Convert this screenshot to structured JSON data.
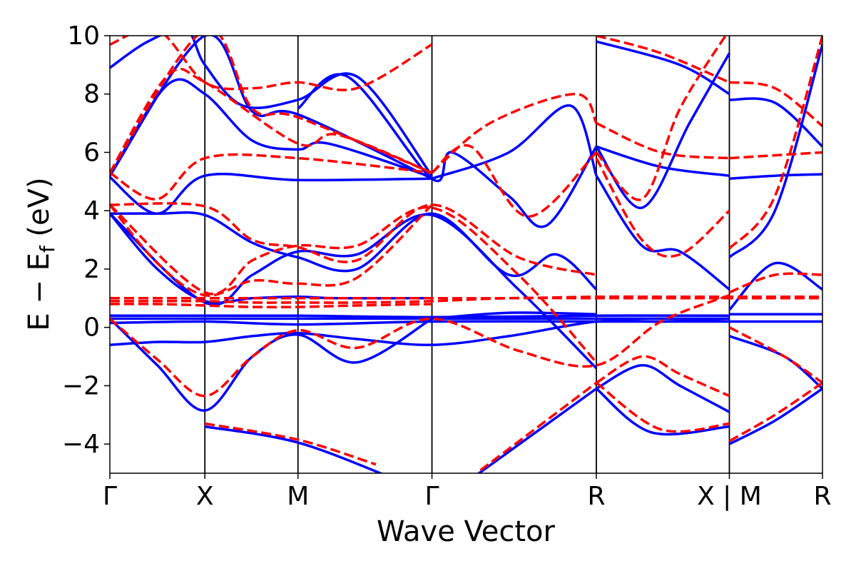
{
  "chart_data": {
    "type": "line",
    "title": "",
    "xlabel": "Wave Vector",
    "ylabel": "E − E",
    "ylabel_subscript": "f",
    "ylabel_units": " (eV)",
    "ylim": [
      -5,
      10
    ],
    "xlim": [
      0,
      7.5
    ],
    "yticks": [
      -4,
      -2,
      0,
      2,
      4,
      6,
      8,
      10
    ],
    "ytick_labels": [
      "−4",
      "−2",
      "0",
      "2",
      "4",
      "6",
      "8",
      "10"
    ],
    "kpoints": [
      {
        "label": "Γ",
        "x": 0.0
      },
      {
        "label": "X",
        "x": 1.0
      },
      {
        "label": "M",
        "x": 1.98
      },
      {
        "label": "Γ",
        "x": 3.39
      },
      {
        "label": "R",
        "x": 5.12
      },
      {
        "label": "X | M",
        "x": 6.52
      },
      {
        "label": "R",
        "x": 7.5
      }
    ],
    "grid": false,
    "colors": {
      "series_a": "#0000ff",
      "series_b": "#ff0000",
      "axis": "#000000"
    },
    "series": [
      {
        "style": "solid",
        "color": "#0000ff",
        "bands": [
          {
            "x": [
              0,
              0.5,
              1.0,
              1.5,
              1.98,
              2.6,
              3.39,
              4.2,
              5.12,
              5.8,
              6.52
            ],
            "y": [
              -0.6,
              -0.5,
              -0.5,
              -0.3,
              -0.2,
              -0.4,
              -0.6,
              -0.3,
              0.2,
              0.2,
              0.3
            ]
          },
          {
            "x": [
              0,
              1.0,
              1.98,
              3.39,
              5.12,
              6.52
            ],
            "y": [
              0.15,
              0.2,
              0.1,
              0.2,
              0.2,
              0.2
            ]
          },
          {
            "x": [
              0,
              1.0,
              1.98,
              3.39,
              5.12,
              6.52
            ],
            "y": [
              0.3,
              0.3,
              0.3,
              0.3,
              0.3,
              0.3
            ]
          },
          {
            "x": [
              0,
              1.0,
              1.98,
              3.39,
              5.12,
              6.52
            ],
            "y": [
              0.4,
              0.4,
              0.4,
              0.35,
              0.4,
              0.4
            ]
          },
          {
            "x": [
              0,
              0.5,
              1.0,
              1.5,
              1.98,
              2.6,
              3.39
            ],
            "y": [
              0.3,
              -1.3,
              -2.85,
              -1.0,
              -0.25,
              -1.2,
              0.3
            ]
          },
          {
            "x": [
              0,
              0.5,
              1.0,
              1.5,
              1.98,
              2.4,
              3.39
            ],
            "y": [
              3.9,
              2.0,
              0.9,
              1.0,
              1.05,
              1.0,
              1.0
            ]
          },
          {
            "x": [
              0,
              0.5,
              1.0,
              1.5,
              1.98,
              2.6,
              3.39,
              4.2,
              4.7,
              5.12
            ],
            "y": [
              3.9,
              3.9,
              3.85,
              2.9,
              2.4,
              2.0,
              3.9,
              1.8,
              2.5,
              1.3
            ]
          },
          {
            "x": [
              0,
              1.0,
              1.5,
              1.98,
              2.6,
              3.39,
              4.3,
              5.12
            ],
            "y": [
              3.9,
              0.85,
              1.8,
              2.6,
              2.5,
              3.85,
              1.3,
              -1.4
            ]
          },
          {
            "x": [
              0,
              0.5,
              1.0,
              1.98,
              3.39
            ],
            "y": [
              5.15,
              3.9,
              5.2,
              5.05,
              5.1
            ]
          },
          {
            "x": [
              0,
              0.6,
              1.0,
              1.5,
              1.98,
              2.3,
              3.39
            ],
            "y": [
              5.2,
              8.3,
              8.0,
              6.4,
              6.1,
              6.3,
              5.15
            ]
          },
          {
            "x": [
              0,
              0.4,
              0.8,
              1.0,
              1.4,
              1.98,
              2.6,
              3.39
            ],
            "y": [
              8.9,
              9.8,
              10.2,
              9.0,
              7.6,
              7.8,
              8.6,
              5.2
            ]
          },
          {
            "x": [
              0,
              1.0,
              1.5,
              1.98,
              3.39
            ],
            "y": [
              5.2,
              10.0,
              7.4,
              7.3,
              5.1
            ]
          },
          {
            "x": [
              1.98,
              2.5,
              3.39,
              3.6,
              4.2,
              4.6,
              5.12
            ],
            "y": [
              7.5,
              8.6,
              5.1,
              6.0,
              4.5,
              3.5,
              6.2
            ]
          },
          {
            "x": [
              3.39,
              4.2,
              4.85,
              5.12
            ],
            "y": [
              5.1,
              6.0,
              7.6,
              5.2
            ]
          },
          {
            "x": [
              3.39,
              4.2,
              5.12
            ],
            "y": [
              0.3,
              0.5,
              0.45
            ]
          },
          {
            "x": [
              5.12,
              5.6,
              6.0,
              6.52
            ],
            "y": [
              5.2,
              2.8,
              2.6,
              1.3
            ]
          },
          {
            "x": [
              5.12,
              5.6,
              6.1,
              6.52
            ],
            "y": [
              6.2,
              4.1,
              7.0,
              9.4
            ]
          },
          {
            "x": [
              5.12,
              5.8,
              6.52
            ],
            "y": [
              6.2,
              5.5,
              5.2
            ]
          },
          {
            "x": [
              5.12,
              6.0,
              6.52
            ],
            "y": [
              9.8,
              9.0,
              8.0
            ]
          },
          {
            "x": [
              5.12,
              5.6,
              6.0,
              6.52
            ],
            "y": [
              -2.1,
              -1.3,
              -2.0,
              -2.9
            ]
          },
          {
            "x": [
              5.12,
              5.7,
              6.52
            ],
            "y": [
              -2.1,
              -3.6,
              -3.4
            ]
          },
          {
            "x": [
              1.0,
              1.98,
              3.0
            ],
            "y": [
              -3.4,
              -3.95,
              -5.2
            ]
          },
          {
            "x": [
              3.8,
              5.12
            ],
            "y": [
              -5.2,
              -2.1
            ]
          },
          {
            "x": [
              6.52,
              7.0,
              7.5
            ],
            "y": [
              -4.0,
              -3.2,
              -2.1
            ]
          },
          {
            "x": [
              6.52,
              7.0,
              7.5
            ],
            "y": [
              7.8,
              7.7,
              6.2
            ]
          },
          {
            "x": [
              6.52,
              7.0,
              7.5
            ],
            "y": [
              5.1,
              5.2,
              5.25
            ]
          },
          {
            "x": [
              6.52,
              7.0,
              7.5
            ],
            "y": [
              2.4,
              4.0,
              9.7
            ]
          },
          {
            "x": [
              6.52,
              7.0,
              7.5
            ],
            "y": [
              0.45,
              0.45,
              0.45
            ]
          },
          {
            "x": [
              6.52,
              7.0,
              7.5
            ],
            "y": [
              0.2,
              0.2,
              0.2
            ]
          },
          {
            "x": [
              6.52,
              7.1,
              7.5
            ],
            "y": [
              -0.3,
              -1.0,
              -2.1
            ]
          },
          {
            "x": [
              6.52,
              7.0,
              7.5
            ],
            "y": [
              0.6,
              2.2,
              1.3
            ]
          }
        ]
      },
      {
        "style": "dashed",
        "color": "#ff0000",
        "bands": [
          {
            "x": [
              0,
              0.5,
              1.0,
              1.5,
              1.98,
              2.6,
              3.39,
              4.2,
              5.12,
              5.8,
              6.52,
              7.0,
              7.5
            ],
            "y": [
              1.0,
              1.0,
              1.0,
              1.0,
              1.0,
              1.0,
              1.0,
              1.0,
              1.05,
              1.05,
              1.05,
              1.05,
              1.05
            ]
          },
          {
            "x": [
              0,
              0.5,
              1.0,
              1.5,
              1.98,
              2.6,
              3.39,
              4.2,
              5.12,
              5.8,
              6.52,
              7.0,
              7.5
            ],
            "y": [
              0.9,
              0.9,
              0.9,
              0.85,
              0.85,
              0.85,
              0.9,
              1.0,
              1.0,
              1.0,
              1.0,
              1.0,
              1.0
            ]
          },
          {
            "x": [
              0,
              0.5,
              1.0,
              1.5,
              1.98,
              2.6,
              3.39
            ],
            "y": [
              0.8,
              0.8,
              0.75,
              0.7,
              0.7,
              0.75,
              0.8
            ]
          },
          {
            "x": [
              0,
              0.5,
              1.0,
              1.5,
              1.98,
              2.6,
              3.39,
              4.3,
              5.12,
              5.8,
              6.52
            ],
            "y": [
              0.3,
              -1.1,
              -2.35,
              -1.0,
              -0.1,
              -0.7,
              0.3,
              -0.8,
              -1.3,
              0.2,
              1.1
            ]
          },
          {
            "x": [
              0,
              0.5,
              1.0,
              1.5,
              1.98,
              2.6,
              3.39
            ],
            "y": [
              4.2,
              2.2,
              1.1,
              1.6,
              1.5,
              1.7,
              4.2
            ]
          },
          {
            "x": [
              0,
              1.0,
              1.5,
              1.98,
              2.6,
              3.39,
              4.3,
              5.12
            ],
            "y": [
              4.2,
              4.15,
              3.0,
              2.75,
              2.3,
              4.2,
              2.4,
              1.8
            ]
          },
          {
            "x": [
              0,
              1.0,
              1.5,
              1.98,
              2.6,
              3.39,
              4.3,
              5.12
            ],
            "y": [
              4.2,
              1.2,
              2.3,
              2.8,
              2.8,
              4.1,
              1.8,
              -1.2
            ]
          },
          {
            "x": [
              0,
              0.5,
              1.0,
              1.98,
              3.39
            ],
            "y": [
              5.3,
              4.4,
              5.8,
              5.8,
              5.3
            ]
          },
          {
            "x": [
              0,
              0.6,
              1.0,
              1.98,
              2.4,
              3.39
            ],
            "y": [
              5.3,
              8.6,
              8.4,
              6.3,
              6.6,
              5.3
            ]
          },
          {
            "x": [
              0,
              0.5,
              1.0,
              1.5,
              1.98,
              2.6,
              3.39
            ],
            "y": [
              9.7,
              10.2,
              8.4,
              8.2,
              8.4,
              8.2,
              9.7
            ]
          },
          {
            "x": [
              0,
              1.0,
              1.5,
              1.98,
              3.39
            ],
            "y": [
              5.3,
              10.2,
              7.5,
              7.2,
              5.3
            ]
          },
          {
            "x": [
              3.39,
              4.0,
              4.9,
              5.12
            ],
            "y": [
              5.3,
              7.0,
              8.0,
              7.0
            ]
          },
          {
            "x": [
              3.39,
              3.8,
              4.4,
              5.12
            ],
            "y": [
              5.3,
              6.2,
              3.8,
              6.0
            ]
          },
          {
            "x": [
              5.12,
              5.8,
              6.52
            ],
            "y": [
              7.0,
              6.0,
              5.8
            ]
          },
          {
            "x": [
              5.12,
              5.6,
              6.0,
              6.52
            ],
            "y": [
              6.0,
              4.4,
              7.5,
              10.2
            ]
          },
          {
            "x": [
              5.12,
              5.6,
              6.0,
              6.52
            ],
            "y": [
              5.8,
              3.0,
              2.5,
              4.0
            ]
          },
          {
            "x": [
              5.12,
              5.8,
              6.52
            ],
            "y": [
              10.0,
              9.4,
              8.4
            ]
          },
          {
            "x": [
              5.12,
              5.6,
              6.0,
              6.52
            ],
            "y": [
              -1.9,
              -1.0,
              -1.6,
              -2.35
            ]
          },
          {
            "x": [
              5.12,
              5.8,
              6.52
            ],
            "y": [
              -1.9,
              -3.5,
              -3.3
            ]
          },
          {
            "x": [
              1.0,
              1.98,
              2.8
            ],
            "y": [
              -3.3,
              -3.85,
              -4.7
            ]
          },
          {
            "x": [
              3.9,
              5.12
            ],
            "y": [
              -4.9,
              -1.9
            ]
          },
          {
            "x": [
              6.52,
              7.0,
              7.5
            ],
            "y": [
              -3.9,
              -3.0,
              -1.9
            ]
          },
          {
            "x": [
              6.52,
              7.0,
              7.5
            ],
            "y": [
              8.4,
              8.2,
              6.9
            ]
          },
          {
            "x": [
              6.52,
              7.0,
              7.5
            ],
            "y": [
              5.8,
              5.9,
              6.0
            ]
          },
          {
            "x": [
              6.52,
              7.0,
              7.5
            ],
            "y": [
              2.7,
              4.5,
              10.0
            ]
          },
          {
            "x": [
              6.52,
              7.0,
              7.5
            ],
            "y": [
              1.2,
              1.8,
              1.8
            ]
          },
          {
            "x": [
              6.52,
              7.1,
              7.5
            ],
            "y": [
              0.0,
              -1.0,
              -1.9
            ]
          }
        ]
      }
    ]
  }
}
